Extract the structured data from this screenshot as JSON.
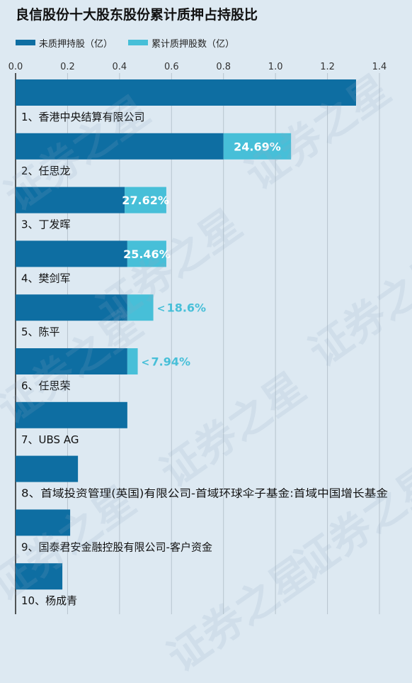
{
  "title": "良信股份十大股东股份累计质押占持股比",
  "watermark": "证券之星",
  "colors": {
    "unpledged": "#0e6ea2",
    "pledged": "#47bfd8",
    "grid": "#b7c4ce",
    "axis": "#333333",
    "label": "#111111",
    "pct_inside": "#ffffff",
    "pct_outside": "#47bfd8"
  },
  "chart_data": {
    "type": "bar",
    "orientation": "horizontal",
    "stacked": true,
    "xlim": [
      0,
      1.4
    ],
    "xticks": [
      0.0,
      0.2,
      0.4,
      0.6,
      0.8,
      1.0,
      1.2,
      1.4
    ],
    "xtick_labels": [
      "0.0",
      "0.2",
      "0.4",
      "0.6",
      "0.8",
      "1.0",
      "1.2",
      "1.4"
    ],
    "legend_position": "top-left",
    "grid": true,
    "categories": [
      "1、香港中央结算有限公司",
      "2、任思龙",
      "3、丁发晖",
      "4、樊剑军",
      "5、陈平",
      "6、任思荣",
      "7、UBS AG",
      "8、首域投资管理(英国)有限公司-首域环球伞子基金:首域中国增长基金",
      "9、国泰君安金融控股有限公司-客户资金",
      "10、杨成青"
    ],
    "series": [
      {
        "name": "未质押持股（亿）",
        "values": [
          1.31,
          0.8,
          0.42,
          0.43,
          0.43,
          0.43,
          0.43,
          0.24,
          0.21,
          0.18
        ]
      },
      {
        "name": "累计质押股数（亿）",
        "values": [
          0,
          0.26,
          0.16,
          0.15,
          0.1,
          0.04,
          0,
          0,
          0,
          0
        ]
      }
    ],
    "pct_labels": [
      "",
      "24.69%",
      "27.62%",
      "25.46%",
      "18.6%",
      "7.94%",
      "",
      "",
      "",
      ""
    ],
    "pct_label_inside": [
      false,
      true,
      true,
      true,
      false,
      false,
      false,
      false,
      false,
      false
    ],
    "outside_marker": "<"
  }
}
